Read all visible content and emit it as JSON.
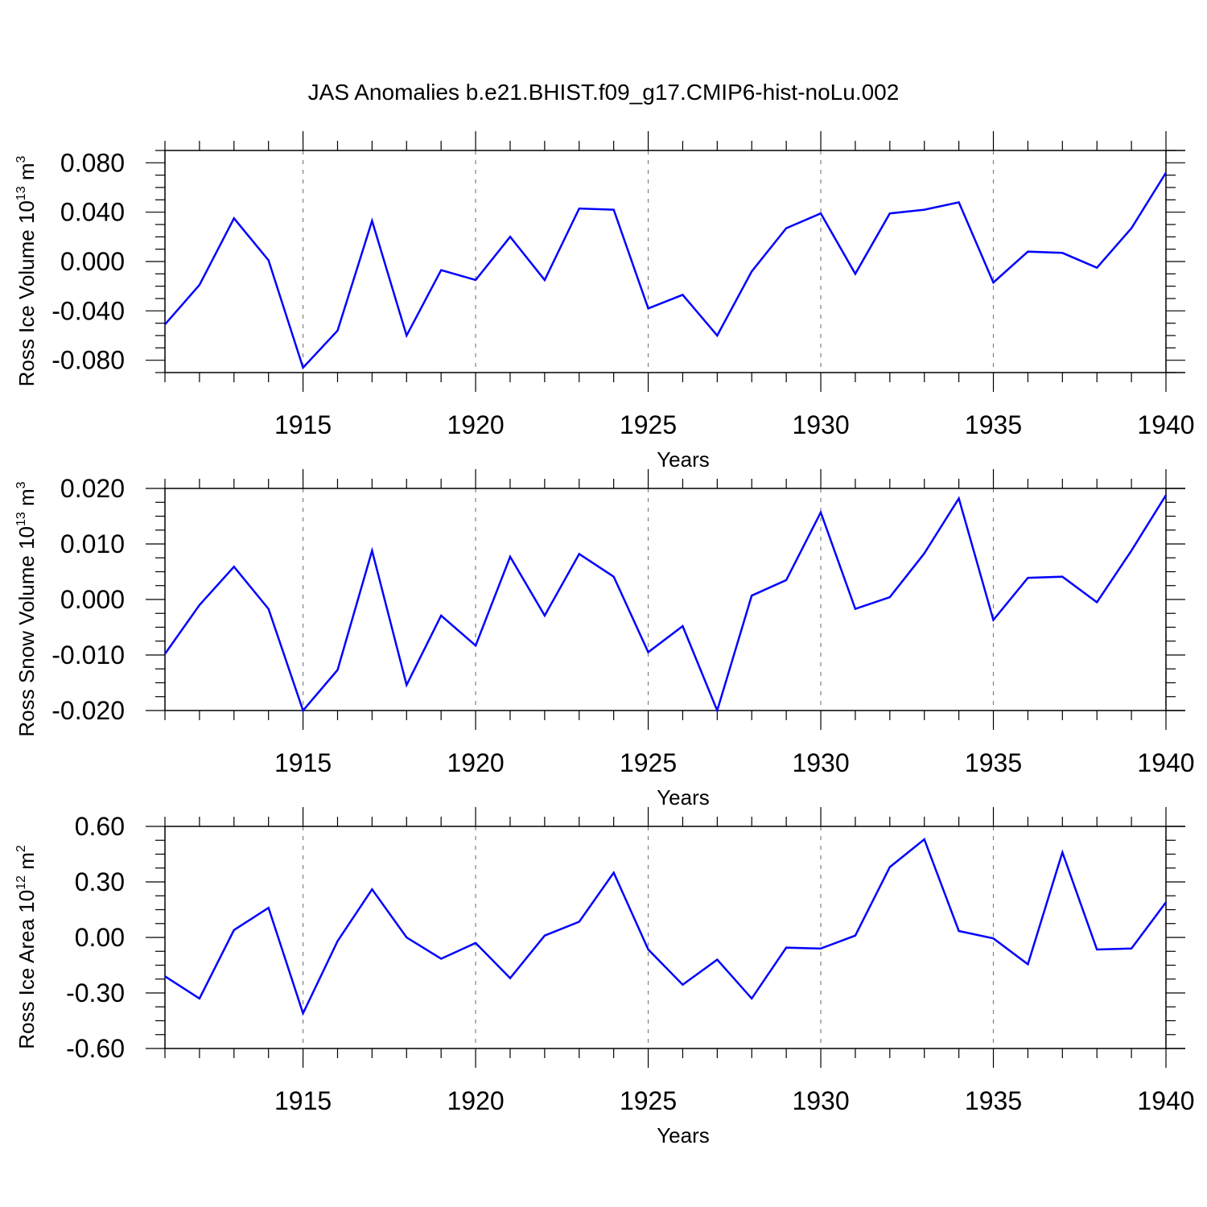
{
  "title": "JAS Anomalies b.e21.BHIST.f09_g17.CMIP6-hist-noLu.002",
  "colors": {
    "line": "#0000ff",
    "axis": "#000000",
    "grid": "#808080",
    "background": "#ffffff"
  },
  "chart_data": [
    {
      "type": "line",
      "title": "JAS Anomalies b.e21.BHIST.f09_g17.CMIP6-hist-noLu.002",
      "xlabel": "Years",
      "ylabel": {
        "base": "Ross Ice Volume 10",
        "exp": "13",
        "unit": " m",
        "unit_exp": "3"
      },
      "xlim": [
        1911,
        1940
      ],
      "ylim": [
        -0.09,
        0.09
      ],
      "xticks": [
        "1915",
        "1920",
        "1925",
        "1930",
        "1935",
        "1940"
      ],
      "yticks": [
        "-0.080",
        "-0.040",
        "0.000",
        "0.040",
        "0.080"
      ],
      "ytick_values": [
        -0.08,
        -0.04,
        0.0,
        0.04,
        0.08
      ],
      "grid": "vertical dashed at major x ticks",
      "x": [
        1911,
        1912,
        1913,
        1914,
        1915,
        1916,
        1917,
        1918,
        1919,
        1920,
        1921,
        1922,
        1923,
        1924,
        1925,
        1926,
        1927,
        1928,
        1929,
        1930,
        1931,
        1932,
        1933,
        1934,
        1935,
        1936,
        1937,
        1938,
        1939,
        1940
      ],
      "series": [
        {
          "values": [
            -0.051,
            -0.019,
            0.035,
            0.001,
            -0.086,
            -0.056,
            0.033,
            -0.06,
            -0.007,
            -0.015,
            0.02,
            -0.015,
            0.043,
            0.042,
            -0.038,
            -0.027,
            -0.06,
            -0.008,
            0.027,
            0.039,
            -0.01,
            0.039,
            0.042,
            0.048,
            -0.017,
            0.008,
            0.007,
            -0.005,
            0.027,
            0.072
          ]
        }
      ]
    },
    {
      "type": "line",
      "xlabel": "Years",
      "ylabel": {
        "base": "Ross Snow Volume 10",
        "exp": "13",
        "unit": " m",
        "unit_exp": "3"
      },
      "xlim": [
        1911,
        1940
      ],
      "ylim": [
        -0.02,
        0.02
      ],
      "xticks": [
        "1915",
        "1920",
        "1925",
        "1930",
        "1935",
        "1940"
      ],
      "yticks": [
        "-0.020",
        "-0.010",
        "0.000",
        "0.010",
        "0.020"
      ],
      "ytick_values": [
        -0.02,
        -0.01,
        0.0,
        0.01,
        0.02
      ],
      "grid": "vertical dashed at major x ticks",
      "x": [
        1911,
        1912,
        1913,
        1914,
        1915,
        1916,
        1917,
        1918,
        1919,
        1920,
        1921,
        1922,
        1923,
        1924,
        1925,
        1926,
        1927,
        1928,
        1929,
        1930,
        1931,
        1932,
        1933,
        1934,
        1935,
        1936,
        1937,
        1938,
        1939,
        1940
      ],
      "series": [
        {
          "values": [
            -0.0098,
            -0.001,
            0.0059,
            -0.0017,
            -0.02,
            -0.0127,
            0.0088,
            -0.0154,
            -0.0029,
            -0.0083,
            0.0077,
            -0.0029,
            0.0082,
            0.0041,
            -0.0095,
            -0.0048,
            -0.02,
            0.0007,
            0.0035,
            0.0157,
            -0.0017,
            0.0004,
            0.0083,
            0.0182,
            -0.0037,
            0.0039,
            0.0041,
            -0.0005,
            0.0088,
            0.0188
          ]
        }
      ]
    },
    {
      "type": "line",
      "xlabel": "Years",
      "ylabel": {
        "base": "Ross Ice Area 10",
        "exp": "12",
        "unit": " m",
        "unit_exp": "2"
      },
      "xlim": [
        1911,
        1940
      ],
      "ylim": [
        -0.6,
        0.6
      ],
      "xticks": [
        "1915",
        "1920",
        "1925",
        "1930",
        "1935",
        "1940"
      ],
      "yticks": [
        "-0.60",
        "-0.30",
        "0.00",
        "0.30",
        "0.60"
      ],
      "ytick_values": [
        -0.6,
        -0.3,
        0.0,
        0.3,
        0.6
      ],
      "grid": "vertical dashed at major x ticks",
      "x": [
        1911,
        1912,
        1913,
        1914,
        1915,
        1916,
        1917,
        1918,
        1919,
        1920,
        1921,
        1922,
        1923,
        1924,
        1925,
        1926,
        1927,
        1928,
        1929,
        1930,
        1931,
        1932,
        1933,
        1934,
        1935,
        1936,
        1937,
        1938,
        1939,
        1940
      ],
      "series": [
        {
          "values": [
            -0.21,
            -0.33,
            0.04,
            0.16,
            -0.41,
            -0.02,
            0.26,
            0.0,
            -0.115,
            -0.03,
            -0.22,
            0.01,
            0.085,
            0.35,
            -0.065,
            -0.255,
            -0.12,
            -0.33,
            -0.055,
            -0.06,
            0.01,
            0.38,
            0.53,
            0.035,
            -0.005,
            -0.145,
            0.46,
            -0.065,
            -0.06,
            0.19
          ]
        }
      ]
    }
  ]
}
